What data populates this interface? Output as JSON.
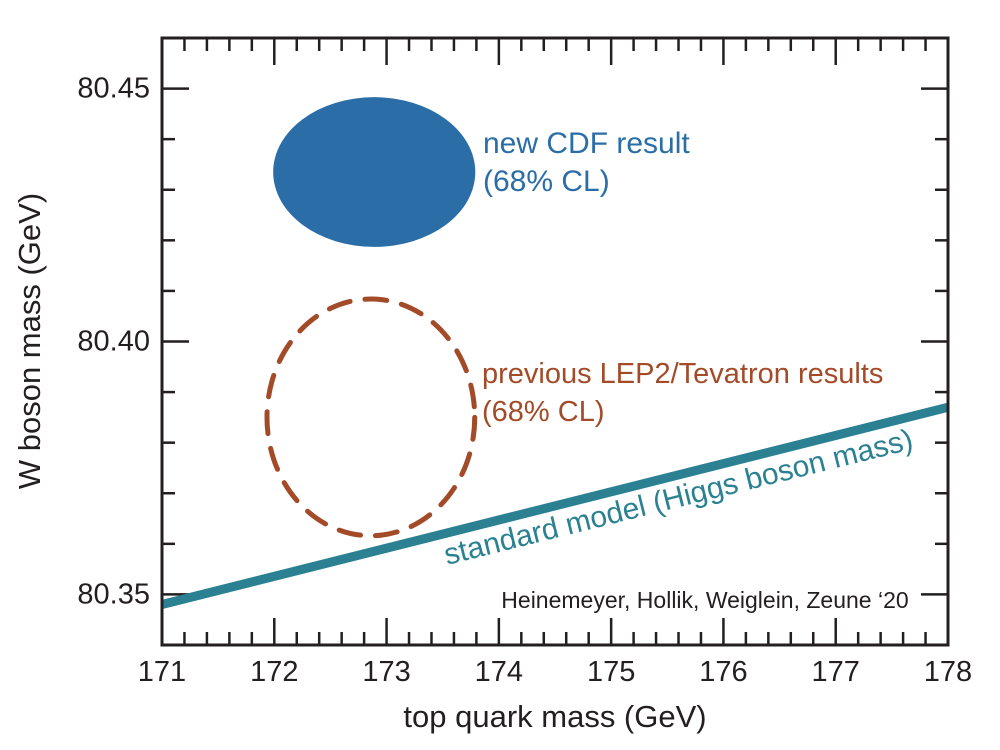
{
  "figure": {
    "annotations": {
      "cdf_line1": "new CDF result",
      "cdf_line2": "(68% CL)",
      "prev_line1": "previous LEP2/Tevatron results",
      "prev_line2": "(68% CL)",
      "sm_label": "standard model (Higgs boson mass)",
      "citation": "Heinemeyer, Hollik, Weiglein, Zeune ‘20"
    },
    "colors": {
      "cdf_blue": "#2b6da6",
      "lep_tevatron_brown": "#a34b28",
      "sm_teal": "#2b8191",
      "axis_black": "#231f20"
    }
  },
  "chart_data": {
    "type": "scatter",
    "title": "",
    "xlabel": "top quark mass (GeV)",
    "ylabel": "W boson mass (GeV)",
    "xlim": [
      171,
      178
    ],
    "ylim": [
      80.34,
      80.46
    ],
    "grid": false,
    "legend_position": "none",
    "x_major_ticks": [
      171,
      172,
      173,
      174,
      175,
      176,
      177,
      178
    ],
    "x_tick_labels": [
      "171",
      "172",
      "173",
      "174",
      "175",
      "176",
      "177",
      "178"
    ],
    "x_minor_step": 0.2,
    "y_major_ticks": [
      80.35,
      80.4,
      80.45
    ],
    "y_tick_labels": [
      "80.35",
      "80.40",
      "80.45"
    ],
    "y_minor_step": 0.01,
    "series": [
      {
        "id": "cdf-ellipse",
        "name": "new CDF result (68% CL)",
        "shape": "ellipse",
        "style": "filled",
        "color": "#2b6da6",
        "center_mt_GeV": 172.89,
        "center_mW_GeV": 80.4335,
        "rx_GeV": 0.9,
        "ry_GeV": 0.0148
      },
      {
        "id": "lep2-tevatron-ellipse",
        "name": "previous LEP2/Tevatron results (68% CL)",
        "shape": "ellipse",
        "style": "dashed",
        "color": "#a34b28",
        "center_mt_GeV": 172.86,
        "center_mW_GeV": 80.385,
        "rx_GeV": 0.925,
        "ry_GeV": 0.0234
      },
      {
        "id": "sm-line",
        "name": "standard model (Higgs boson mass)",
        "shape": "line",
        "style": "solid",
        "color": "#2b8191",
        "points": [
          {
            "mt_GeV": 171,
            "mW_GeV": 80.348
          },
          {
            "mt_GeV": 178,
            "mW_GeV": 80.387
          }
        ]
      }
    ]
  }
}
